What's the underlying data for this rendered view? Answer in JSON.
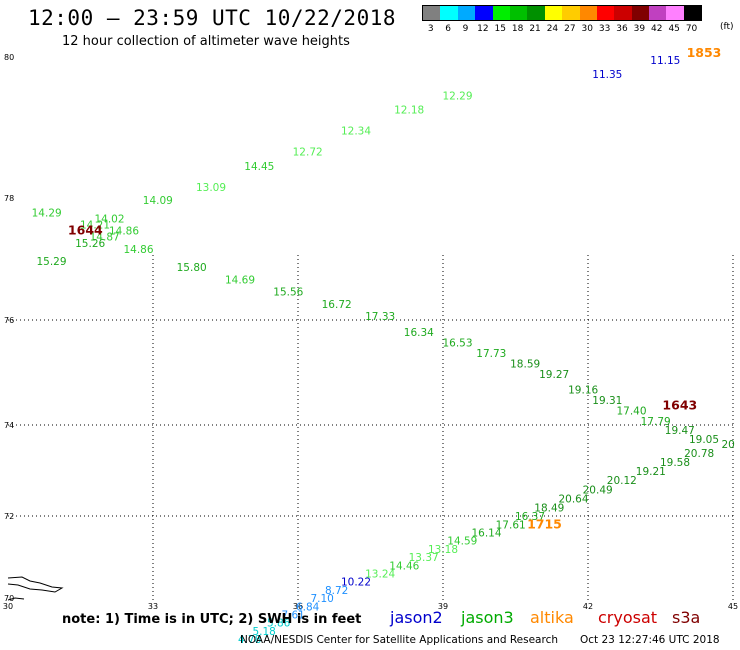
{
  "header": {
    "title": "12:00 – 23:59 UTC 10/22/2018",
    "subtitle": "12 hour collection of altimeter wave heights"
  },
  "legend": {
    "units": "(ft)",
    "bins": [
      {
        "label": "3",
        "color": "#808080"
      },
      {
        "label": "6",
        "color": "#00ffff"
      },
      {
        "label": "9",
        "color": "#00aaff"
      },
      {
        "label": "12",
        "color": "#0000ff"
      },
      {
        "label": "15",
        "color": "#00ee00"
      },
      {
        "label": "18",
        "color": "#00c000"
      },
      {
        "label": "21",
        "color": "#009000"
      },
      {
        "label": "24",
        "color": "#ffff00"
      },
      {
        "label": "27",
        "color": "#ffcc00"
      },
      {
        "label": "30",
        "color": "#ff8800"
      },
      {
        "label": "33",
        "color": "#ff0000"
      },
      {
        "label": "36",
        "color": "#cc0000"
      },
      {
        "label": "39",
        "color": "#800000"
      },
      {
        "label": "42",
        "color": "#c040c0"
      },
      {
        "label": "45",
        "color": "#ff80ff"
      },
      {
        "label": "70",
        "color": "#000000"
      }
    ]
  },
  "map": {
    "lon_ticks": [
      "30",
      "33",
      "36",
      "39",
      "42",
      "45"
    ],
    "lat_ticks": [
      "80",
      "78",
      "76",
      "74",
      "72",
      "70"
    ],
    "lon_range": [
      30,
      45
    ],
    "lat_range": [
      70,
      80
    ],
    "observations": [
      {
        "v": "11.15",
        "lon": 43.6,
        "lat": 79.9,
        "c": "#0000cc"
      },
      {
        "v": "11.35",
        "lon": 42.4,
        "lat": 79.7,
        "c": "#0000cc"
      },
      {
        "v": "12.29",
        "lon": 39.3,
        "lat": 79.4,
        "c": "#55ee55"
      },
      {
        "v": "12.18",
        "lon": 38.3,
        "lat": 79.2,
        "c": "#55ee55"
      },
      {
        "v": "12.34",
        "lon": 37.2,
        "lat": 78.9,
        "c": "#55ee55"
      },
      {
        "v": "12.72",
        "lon": 36.2,
        "lat": 78.6,
        "c": "#55ee55"
      },
      {
        "v": "14.45",
        "lon": 35.2,
        "lat": 78.4,
        "c": "#33cc33"
      },
      {
        "v": "13.09",
        "lon": 34.2,
        "lat": 78.1,
        "c": "#55ee55"
      },
      {
        "v": "14.09",
        "lon": 33.1,
        "lat": 77.9,
        "c": "#33cc33"
      },
      {
        "v": "14.02",
        "lon": 32.1,
        "lat": 77.6,
        "c": "#33cc33"
      },
      {
        "v": "14.29",
        "lon": 30.8,
        "lat": 77.7,
        "c": "#33cc33"
      },
      {
        "v": "14.21",
        "lon": 31.8,
        "lat": 77.5,
        "c": "#33cc33"
      },
      {
        "v": "14.86",
        "lon": 32.4,
        "lat": 77.4,
        "c": "#33cc33"
      },
      {
        "v": "14.87",
        "lon": 32.0,
        "lat": 77.3,
        "c": "#33cc33"
      },
      {
        "v": "15.26",
        "lon": 31.7,
        "lat": 77.2,
        "c": "#1faa1f"
      },
      {
        "v": "15.29",
        "lon": 30.9,
        "lat": 76.9,
        "c": "#1faa1f"
      },
      {
        "v": "14.86",
        "lon": 32.7,
        "lat": 77.1,
        "c": "#33cc33"
      },
      {
        "v": "15.80",
        "lon": 33.8,
        "lat": 76.8,
        "c": "#1faa1f"
      },
      {
        "v": "14.69",
        "lon": 34.8,
        "lat": 76.6,
        "c": "#33cc33"
      },
      {
        "v": "15.56",
        "lon": 35.8,
        "lat": 76.4,
        "c": "#1faa1f"
      },
      {
        "v": "16.72",
        "lon": 36.8,
        "lat": 76.2,
        "c": "#1faa1f"
      },
      {
        "v": "17.33",
        "lon": 37.7,
        "lat": 76.0,
        "c": "#1faa1f"
      },
      {
        "v": "16.34",
        "lon": 38.5,
        "lat": 75.7,
        "c": "#1faa1f"
      },
      {
        "v": "16.53",
        "lon": 39.3,
        "lat": 75.5,
        "c": "#1faa1f"
      },
      {
        "v": "17.73",
        "lon": 40.0,
        "lat": 75.3,
        "c": "#1faa1f"
      },
      {
        "v": "18.59",
        "lon": 40.7,
        "lat": 75.1,
        "c": "#1a8f1a"
      },
      {
        "v": "19.27",
        "lon": 41.3,
        "lat": 74.9,
        "c": "#1a8f1a"
      },
      {
        "v": "19.16",
        "lon": 41.9,
        "lat": 74.6,
        "c": "#1a8f1a"
      },
      {
        "v": "19.31",
        "lon": 42.4,
        "lat": 74.4,
        "c": "#1a8f1a"
      },
      {
        "v": "17.40",
        "lon": 42.9,
        "lat": 74.2,
        "c": "#1faa1f"
      },
      {
        "v": "17.79",
        "lon": 43.4,
        "lat": 74.0,
        "c": "#1faa1f"
      },
      {
        "v": "19.47",
        "lon": 43.9,
        "lat": 73.8,
        "c": "#1a8f1a"
      },
      {
        "v": "19.05",
        "lon": 44.4,
        "lat": 73.6,
        "c": "#1a8f1a"
      },
      {
        "v": "20",
        "lon": 44.9,
        "lat": 73.5,
        "c": "#1a8f1a"
      },
      {
        "v": "20.78",
        "lon": 44.3,
        "lat": 73.3,
        "c": "#1a8f1a"
      },
      {
        "v": "19.58",
        "lon": 43.8,
        "lat": 73.1,
        "c": "#1a8f1a"
      },
      {
        "v": "19.21",
        "lon": 43.3,
        "lat": 72.9,
        "c": "#1a8f1a"
      },
      {
        "v": "20.12",
        "lon": 42.7,
        "lat": 72.7,
        "c": "#1a8f1a"
      },
      {
        "v": "20.49",
        "lon": 42.2,
        "lat": 72.5,
        "c": "#1a8f1a"
      },
      {
        "v": "20.64",
        "lon": 41.7,
        "lat": 72.3,
        "c": "#1a8f1a"
      },
      {
        "v": "18.49",
        "lon": 41.2,
        "lat": 72.1,
        "c": "#1a8f1a"
      },
      {
        "v": "16.37",
        "lon": 40.8,
        "lat": 71.9,
        "c": "#1faa1f"
      },
      {
        "v": "17.61",
        "lon": 40.4,
        "lat": 71.7,
        "c": "#1faa1f"
      },
      {
        "v": "16.14",
        "lon": 39.9,
        "lat": 71.5,
        "c": "#1faa1f"
      },
      {
        "v": "14.59",
        "lon": 39.4,
        "lat": 71.3,
        "c": "#33cc33"
      },
      {
        "v": "13.18",
        "lon": 39.0,
        "lat": 71.1,
        "c": "#55ee55"
      },
      {
        "v": "13.37",
        "lon": 38.6,
        "lat": 70.9,
        "c": "#55ee55"
      },
      {
        "v": "14.46",
        "lon": 38.2,
        "lat": 70.7,
        "c": "#33cc33"
      },
      {
        "v": "13.24",
        "lon": 37.7,
        "lat": 70.5,
        "c": "#55ee55"
      },
      {
        "v": "10.22",
        "lon": 37.2,
        "lat": 70.3,
        "c": "#0000cc"
      },
      {
        "v": "8.72",
        "lon": 36.8,
        "lat": 70.1,
        "c": "#1e90ff"
      },
      {
        "v": "7.10",
        "lon": 36.5,
        "lat": 69.9,
        "c": "#1e90ff"
      },
      {
        "v": "6.84",
        "lon": 36.2,
        "lat": 69.7,
        "c": "#1e90ff"
      },
      {
        "v": "7.61",
        "lon": 35.9,
        "lat": 69.5,
        "c": "#1e90ff"
      },
      {
        "v": "5.86",
        "lon": 35.6,
        "lat": 69.3,
        "c": "#00cccc"
      },
      {
        "v": "5.18",
        "lon": 35.3,
        "lat": 69.1,
        "c": "#00cccc"
      },
      {
        "v": "4.78",
        "lon": 35.0,
        "lat": 68.9,
        "c": "#00cccc"
      }
    ],
    "passes": [
      {
        "v": "1853",
        "lon": 44.4,
        "lat": 80.0,
        "c": "#ff8800"
      },
      {
        "v": "1644",
        "lon": 31.6,
        "lat": 77.4,
        "c": "#800000"
      },
      {
        "v": "1643",
        "lon": 43.9,
        "lat": 74.3,
        "c": "#800000"
      },
      {
        "v": "1715",
        "lon": 41.1,
        "lat": 71.7,
        "c": "#ff8800"
      }
    ]
  },
  "footer": {
    "note": "note: 1) Time is in UTC; 2) SWH is in feet",
    "satellites": [
      {
        "label": "jason2",
        "color": "#0000cc"
      },
      {
        "label": "jason3",
        "color": "#00aa00"
      },
      {
        "label": "altika",
        "color": "#ff8800"
      },
      {
        "label": "cryosat",
        "color": "#cc0000"
      },
      {
        "label": "s3a",
        "color": "#800000"
      }
    ],
    "credit": "NOAA/NESDIS Center for Satellite Applications and Research",
    "timestamp": "Oct 23 12:27:46 UTC 2018"
  }
}
